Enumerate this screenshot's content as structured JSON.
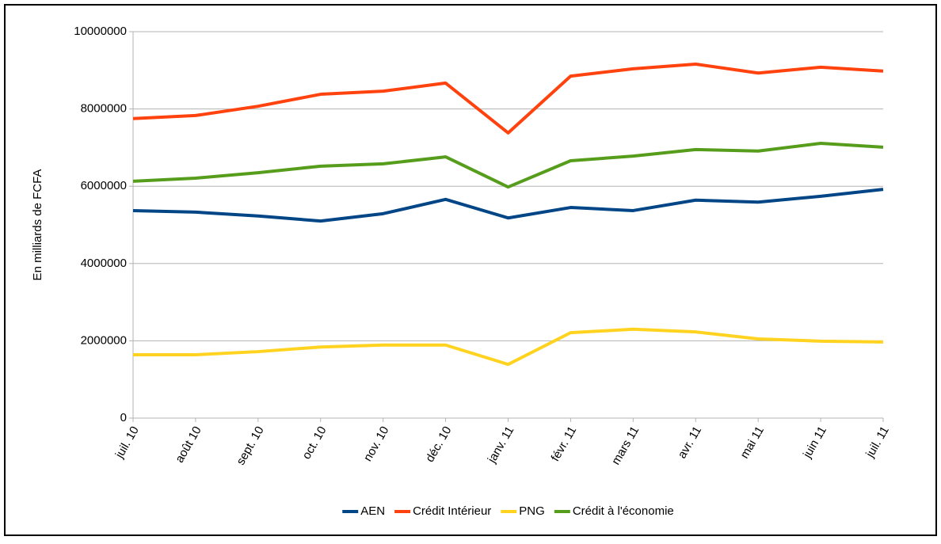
{
  "chart_data": {
    "type": "line",
    "y_label": "En milliards de FCFA",
    "categories": [
      "juil. 10",
      "août 10",
      "sept. 10",
      "oct. 10",
      "nov. 10",
      "déc. 10",
      "janv. 11",
      "févr. 11",
      "mars 11",
      "avr. 11",
      "mai 11",
      "juin 11",
      "juil. 11"
    ],
    "series": [
      {
        "name": "AEN",
        "color": "#004586",
        "values": [
          5370000,
          5330000,
          5230000,
          5100000,
          5290000,
          5660000,
          5180000,
          5450000,
          5370000,
          5640000,
          5590000,
          5740000,
          5920000
        ]
      },
      {
        "name": "Crédit Intérieur",
        "color": "#ff420e",
        "values": [
          7750000,
          7830000,
          8070000,
          8380000,
          8460000,
          8670000,
          7380000,
          8850000,
          9040000,
          9160000,
          8930000,
          9080000,
          8980000
        ]
      },
      {
        "name": "PNG",
        "color": "#ffd320",
        "values": [
          1640000,
          1640000,
          1720000,
          1840000,
          1890000,
          1890000,
          1390000,
          2210000,
          2300000,
          2230000,
          2050000,
          1990000,
          1970000
        ]
      },
      {
        "name": "Crédit à l'économie",
        "color": "#579d1c",
        "values": [
          6130000,
          6210000,
          6350000,
          6520000,
          6580000,
          6760000,
          5980000,
          6660000,
          6780000,
          6950000,
          6910000,
          7110000,
          7010000
        ]
      }
    ],
    "ylim": [
      0,
      10000000
    ],
    "yticks": [
      0,
      2000000,
      4000000,
      6000000,
      8000000,
      10000000
    ],
    "grid": true,
    "legend": "bottom"
  }
}
